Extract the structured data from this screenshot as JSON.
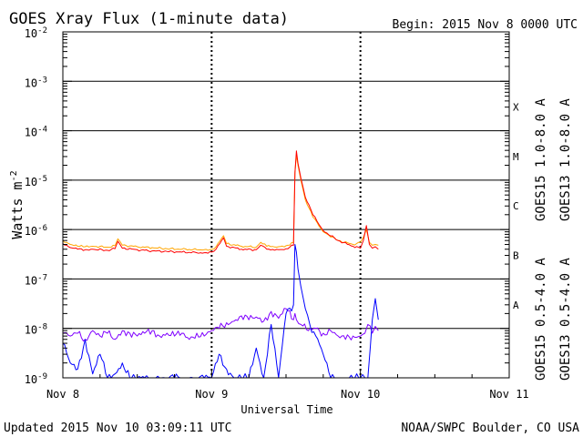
{
  "chart_data": {
    "type": "line",
    "title": "GOES Xray Flux (1-minute data)",
    "begin_text": "Begin:  2015 Nov 8 0000 UTC",
    "ylabel": "Watts m",
    "ylabel_sup": "-2",
    "xlabel": "Universal Time",
    "yscale": "log",
    "ylim": [
      1e-09,
      0.01
    ],
    "xlim_days": [
      0,
      3
    ],
    "y_ticks": [
      {
        "base": "10",
        "exp": "-2",
        "value": 0.01
      },
      {
        "base": "10",
        "exp": "-3",
        "value": 0.001
      },
      {
        "base": "10",
        "exp": "-4",
        "value": 0.0001
      },
      {
        "base": "10",
        "exp": "-5",
        "value": 1e-05
      },
      {
        "base": "10",
        "exp": "-6",
        "value": 1e-06
      },
      {
        "base": "10",
        "exp": "-7",
        "value": 1e-07
      },
      {
        "base": "10",
        "exp": "-8",
        "value": 1e-08
      },
      {
        "base": "10",
        "exp": "-9",
        "value": 1e-09
      }
    ],
    "x_ticks": [
      {
        "label": "Nov 8",
        "day": 0
      },
      {
        "label": "Nov 9",
        "day": 1
      },
      {
        "label": "Nov 10",
        "day": 2
      },
      {
        "label": "Nov 11",
        "day": 3
      }
    ],
    "flare_classes": [
      {
        "label": "X",
        "value": 0.0003
      },
      {
        "label": "M",
        "value": 3e-05
      },
      {
        "label": "C",
        "value": 3e-06
      },
      {
        "label": "B",
        "value": 3e-07
      },
      {
        "label": "A",
        "value": 3e-08
      }
    ],
    "legend_right": [
      {
        "label": "GOES15 1.0-8.0 A",
        "color": "#ff0000"
      },
      {
        "label": "GOES13 1.0-8.0 A",
        "color": "#ffa500"
      }
    ],
    "legend_left": [
      {
        "label": "GOES15 0.5-4.0 A",
        "color": "#0000ff"
      },
      {
        "label": "GOES13 0.5-4.0 A",
        "color": "#7f00ff"
      }
    ],
    "series": [
      {
        "name": "GOES13 1.0-8.0 A",
        "color": "#ffa500",
        "x": [
          0.0,
          0.05,
          0.1,
          0.15,
          0.2,
          0.3,
          0.35,
          0.37,
          0.4,
          0.5,
          0.6,
          0.7,
          0.8,
          0.9,
          0.95,
          1.0,
          1.03,
          1.08,
          1.1,
          1.2,
          1.3,
          1.33,
          1.37,
          1.45,
          1.5,
          1.55,
          1.56,
          1.57,
          1.58,
          1.6,
          1.63,
          1.68,
          1.75,
          1.85,
          1.95,
          2.0,
          2.02,
          2.04,
          2.06,
          2.08,
          2.1,
          2.12
        ],
        "values": [
          6e-07,
          5e-07,
          4.6e-07,
          4.5e-07,
          4.6e-07,
          4.4e-07,
          4.7e-07,
          6.5e-07,
          4.8e-07,
          4.5e-07,
          4.3e-07,
          4.1e-07,
          4e-07,
          3.9e-07,
          3.9e-07,
          4e-07,
          4.5e-07,
          7.5e-07,
          5.2e-07,
          4.6e-07,
          4.4e-07,
          5.5e-07,
          4.6e-07,
          4.5e-07,
          4.7e-07,
          5.5e-07,
          1.5e-05,
          3.2e-05,
          2e-05,
          1e-05,
          4e-06,
          1.8e-06,
          9e-07,
          6e-07,
          5e-07,
          5.5e-07,
          7e-07,
          1e-06,
          5.5e-07,
          4.8e-07,
          5e-07,
          4.8e-07
        ]
      },
      {
        "name": "GOES15 1.0-8.0 A",
        "color": "#ff0000",
        "x": [
          0.0,
          0.05,
          0.1,
          0.15,
          0.2,
          0.3,
          0.35,
          0.37,
          0.4,
          0.5,
          0.6,
          0.7,
          0.8,
          0.9,
          0.95,
          1.0,
          1.03,
          1.08,
          1.1,
          1.2,
          1.3,
          1.33,
          1.37,
          1.45,
          1.5,
          1.55,
          1.56,
          1.57,
          1.58,
          1.6,
          1.63,
          1.68,
          1.75,
          1.85,
          1.95,
          2.0,
          2.02,
          2.04,
          2.06,
          2.08,
          2.1,
          2.12
        ],
        "values": [
          5.2e-07,
          4.3e-07,
          4e-07,
          3.9e-07,
          4e-07,
          3.8e-07,
          4.1e-07,
          5.8e-07,
          4.2e-07,
          3.9e-07,
          3.7e-07,
          3.6e-07,
          3.5e-07,
          3.4e-07,
          3.4e-07,
          3.5e-07,
          4e-07,
          6.8e-07,
          4.6e-07,
          4e-07,
          3.9e-07,
          4.8e-07,
          4e-07,
          3.9e-07,
          4.1e-07,
          4.8e-07,
          1.4e-05,
          3.9e-05,
          2.2e-05,
          1.1e-05,
          4.5e-06,
          2e-06,
          9.5e-07,
          6e-07,
          4.6e-07,
          4.2e-07,
          6e-07,
          1.2e-06,
          5e-07,
          4.2e-07,
          4.5e-07,
          4e-07
        ]
      },
      {
        "name": "GOES13 0.5-4.0 A",
        "color": "#7f00ff",
        "x": [
          0.0,
          0.05,
          0.1,
          0.15,
          0.2,
          0.25,
          0.3,
          0.35,
          0.4,
          0.45,
          0.5,
          0.55,
          0.6,
          0.65,
          0.7,
          0.75,
          0.8,
          0.85,
          0.9,
          0.95,
          1.0,
          1.05,
          1.1,
          1.15,
          1.2,
          1.25,
          1.3,
          1.35,
          1.4,
          1.45,
          1.5,
          1.55,
          1.56,
          1.57,
          1.6,
          1.65,
          1.7,
          1.75,
          1.8,
          1.85,
          1.9,
          1.95,
          2.0,
          2.03,
          2.05,
          2.08,
          2.1,
          2.12
        ],
        "values": [
          8e-09,
          7e-09,
          8e-09,
          6e-09,
          9e-09,
          7e-09,
          8e-09,
          6e-09,
          9e-09,
          8e-09,
          7e-09,
          8e-09,
          9e-09,
          7e-09,
          8e-09,
          7e-09,
          8e-09,
          6e-09,
          8e-09,
          7e-09,
          9e-09,
          1e-08,
          1.3e-08,
          1.4e-08,
          1.8e-08,
          1.5e-08,
          1.7e-08,
          1.4e-08,
          2.2e-08,
          1.6e-08,
          2.5e-08,
          1.5e-08,
          2e-08,
          1.5e-08,
          1.2e-08,
          9e-09,
          1e-08,
          8e-09,
          9e-09,
          7e-09,
          6e-09,
          7e-09,
          7e-09,
          8e-09,
          1.2e-08,
          8e-09,
          1.1e-08,
          9e-09
        ]
      },
      {
        "name": "GOES15 0.5-4.0 A",
        "color": "#0000ff",
        "x": [
          0.0,
          0.05,
          0.1,
          0.15,
          0.2,
          0.25,
          0.3,
          0.35,
          0.4,
          0.45,
          0.5,
          0.55,
          0.6,
          0.65,
          0.7,
          0.75,
          0.8,
          0.85,
          0.9,
          0.95,
          1.0,
          1.05,
          1.1,
          1.15,
          1.2,
          1.25,
          1.3,
          1.35,
          1.4,
          1.45,
          1.5,
          1.55,
          1.56,
          1.57,
          1.58,
          1.6,
          1.63,
          1.66,
          1.7,
          1.75,
          1.8,
          1.85,
          1.9,
          1.95,
          2.0,
          2.03,
          2.05,
          2.08,
          2.1,
          2.12
        ],
        "values": [
          5e-09,
          2e-09,
          1.5e-09,
          6e-09,
          1.2e-09,
          3e-09,
          1e-09,
          1.2e-09,
          2e-09,
          1e-09,
          1e-09,
          1e-09,
          1e-09,
          1e-09,
          1e-09,
          1e-09,
          1e-09,
          1e-09,
          1e-09,
          1e-09,
          1e-09,
          3e-09,
          1.5e-09,
          1e-09,
          1e-09,
          1e-09,
          4e-09,
          1e-09,
          1.2e-08,
          1e-09,
          2e-08,
          3e-08,
          5e-07,
          3.5e-07,
          1.6e-07,
          7e-08,
          2.5e-08,
          1.2e-08,
          7e-09,
          3e-09,
          1e-09,
          1e-09,
          1e-09,
          1e-09,
          1e-09,
          1e-09,
          1e-09,
          1.5e-08,
          4e-08,
          1.5e-08
        ]
      }
    ]
  },
  "footer": {
    "updated": "Updated 2015 Nov 10 03:09:11 UTC",
    "credit": "NOAA/SWPC Boulder, CO USA"
  }
}
